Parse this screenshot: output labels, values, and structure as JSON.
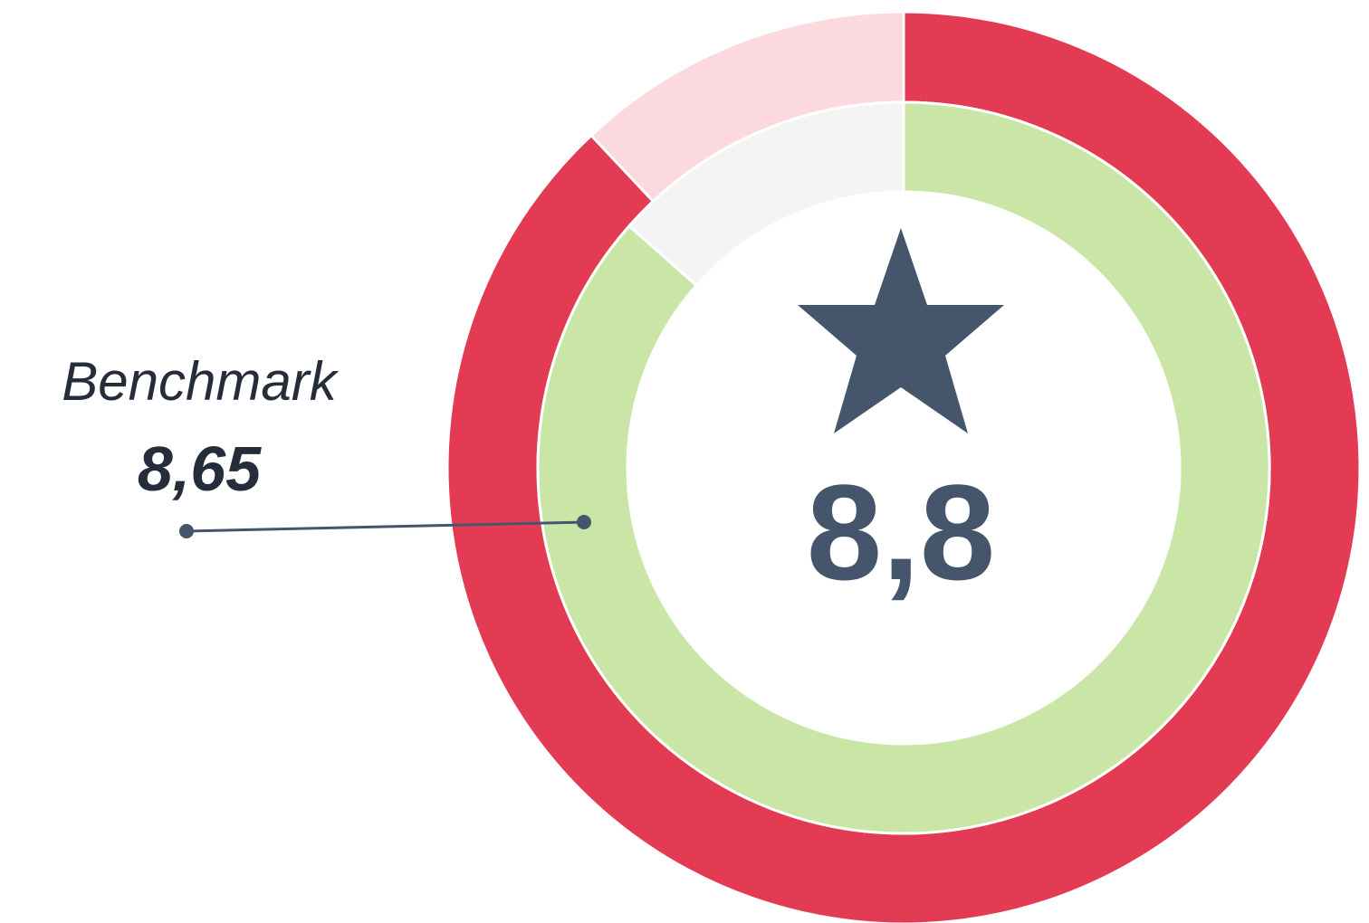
{
  "chart_data": {
    "type": "donut",
    "ylim": [
      0,
      10
    ],
    "series": [
      {
        "color": "#e33b54",
        "remainder_color": "#fbd9de",
        "values": [
          8.8
        ],
        "value_labels": [
          "8,8"
        ]
      },
      {
        "name": "Benchmark",
        "color": "#c9e6a6",
        "remainder_color": "#f4f4f4",
        "values": [
          8.65
        ],
        "value_labels": [
          "8,65"
        ]
      }
    ]
  }
}
